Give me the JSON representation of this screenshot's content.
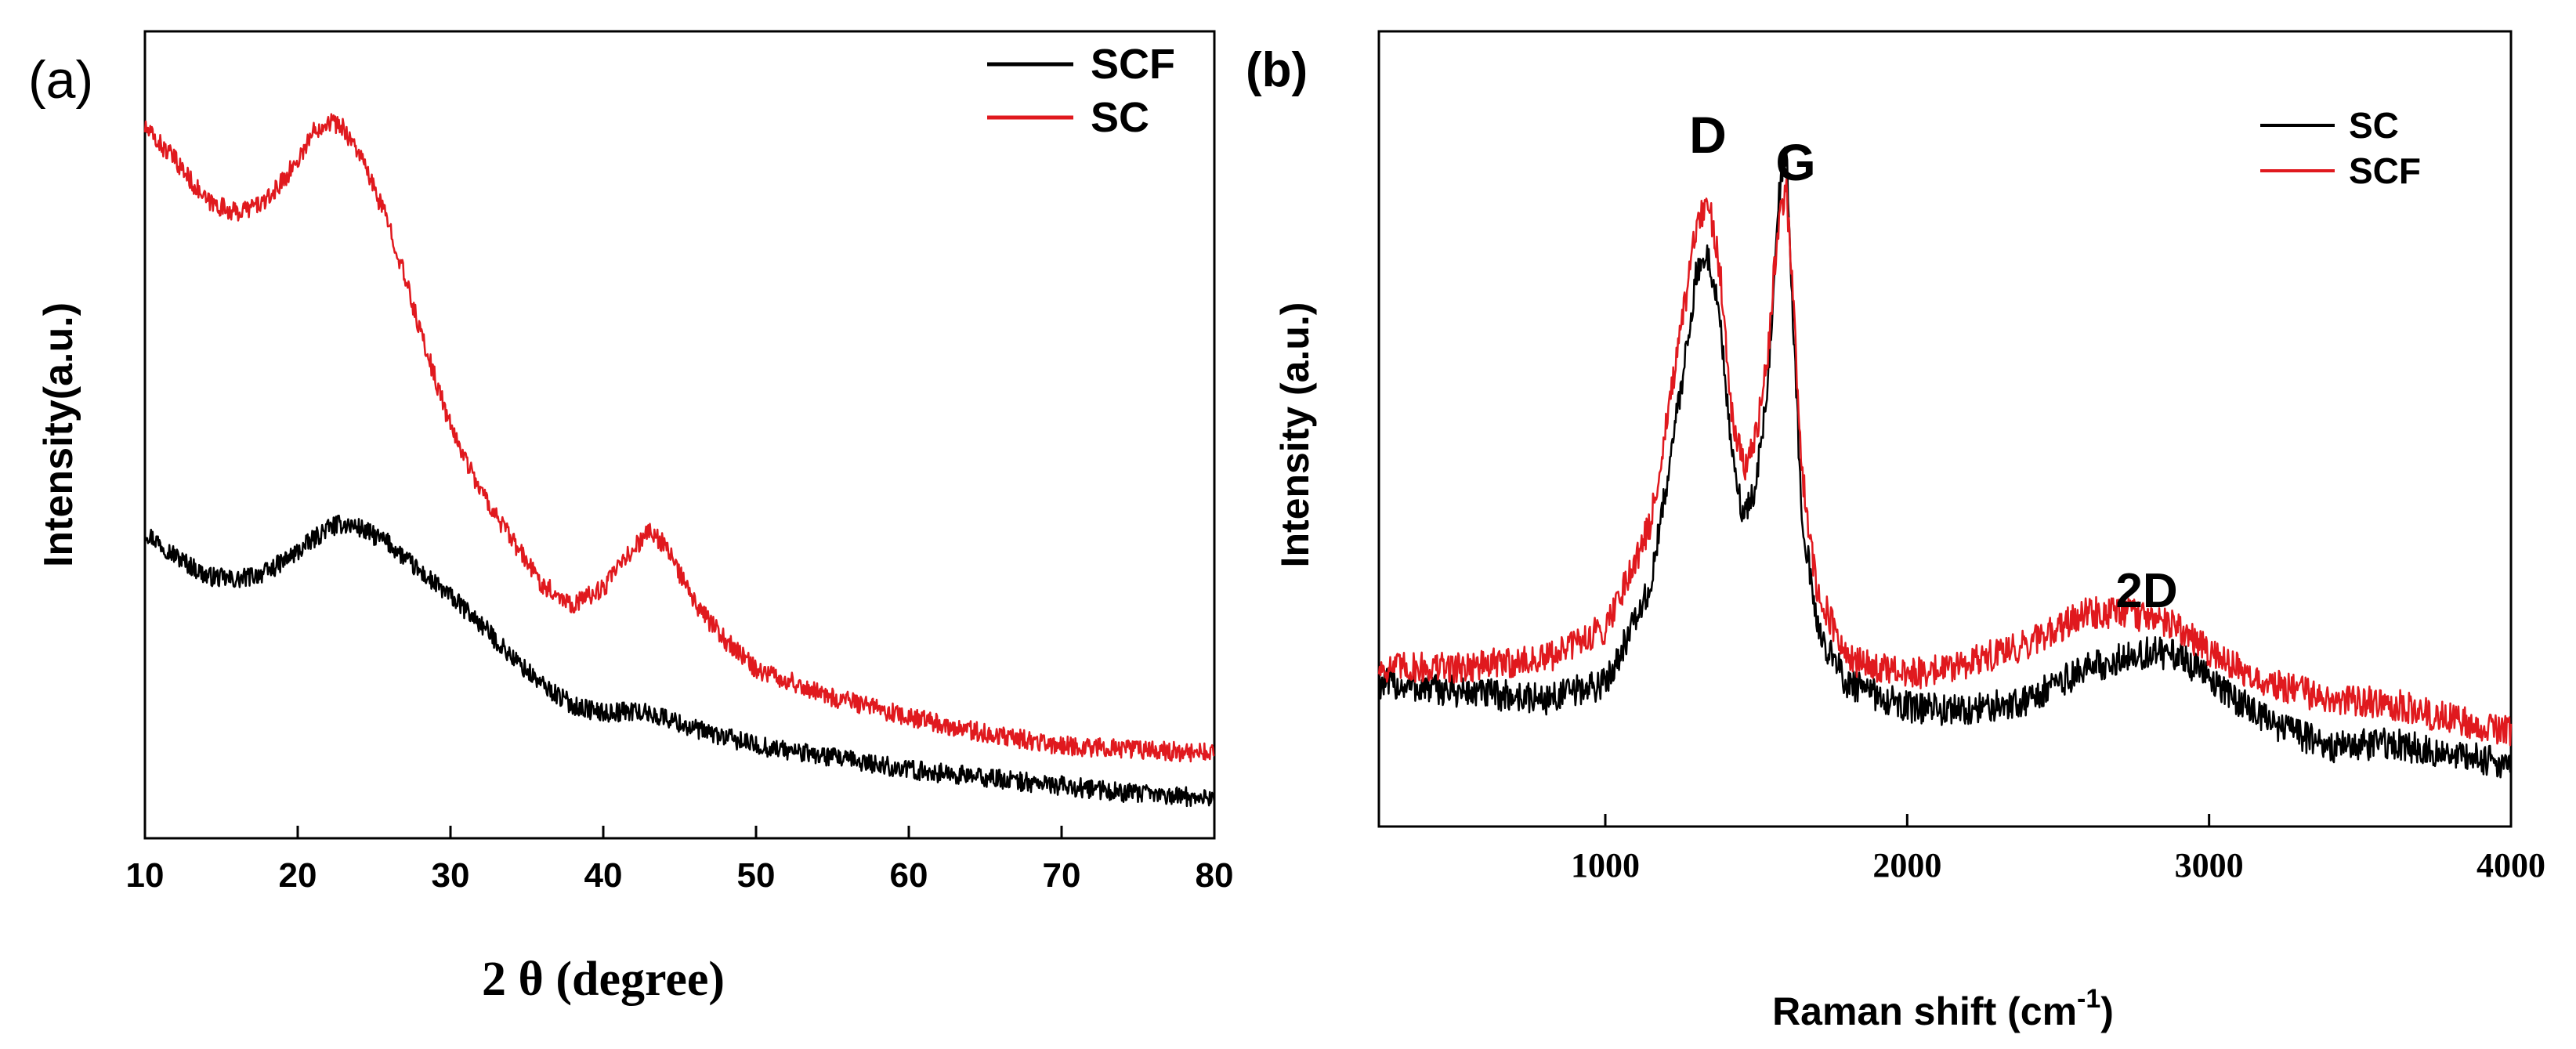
{
  "chart_data": [
    {
      "panel_label": "(a)",
      "type": "line",
      "xlabel": "2 θ (degree)",
      "ylabel": "Intensity(a.u.)",
      "xlim": [
        10,
        80
      ],
      "ylim": [
        0,
        100
      ],
      "xticks": [
        "10",
        "20",
        "30",
        "40",
        "50",
        "60",
        "70",
        "80"
      ],
      "legend": {
        "placement": "top-right",
        "entries": [
          "SCF",
          "SC"
        ]
      },
      "series": [
        {
          "name": "SCF",
          "color": "#000000",
          "x": [
            10,
            12,
            14,
            16,
            18,
            20,
            22,
            23,
            24,
            26,
            28,
            30,
            32,
            34,
            36,
            38,
            40,
            42,
            44,
            46,
            50,
            55,
            60,
            65,
            70,
            75,
            80
          ],
          "y": [
            38,
            35,
            32.5,
            32,
            33,
            35.5,
            38.5,
            39,
            38.5,
            36.5,
            33,
            30,
            26.5,
            22.5,
            19,
            16.5,
            15.5,
            15.8,
            15,
            13.5,
            11.5,
            10,
            8.5,
            7.5,
            6.5,
            5.5,
            5
          ]
        },
        {
          "name": "SC",
          "color": "#e0191e",
          "x": [
            10,
            12,
            14,
            16,
            18,
            20,
            21,
            22,
            23,
            24,
            26,
            28,
            30,
            32,
            34,
            36,
            38,
            40,
            42,
            43,
            44,
            46,
            48,
            50,
            55,
            60,
            65,
            70,
            75,
            80
          ],
          "y": [
            88,
            84,
            79,
            77.5,
            79,
            84,
            87.5,
            89,
            88,
            85,
            76,
            63,
            51,
            43,
            37,
            31.5,
            29,
            31,
            36,
            38,
            36.5,
            29,
            24.5,
            21,
            17.5,
            15,
            13,
            11.5,
            11,
            10.5
          ]
        }
      ]
    },
    {
      "panel_label": "(b)",
      "type": "line",
      "xlabel": "Raman shift (cm",
      "xlabel_superscript": "-1",
      "xlabel_suffix": ")",
      "ylabel": "Intensity (a.u.)",
      "xlim": [
        250,
        4000
      ],
      "ylim": [
        0,
        100
      ],
      "xticks": [
        "1000",
        "2000",
        "3000",
        "4000"
      ],
      "legend": {
        "placement": "top-right",
        "entries": [
          "SC",
          "SCF"
        ]
      },
      "annotations": [
        "D",
        "G",
        "2D"
      ],
      "series": [
        {
          "name": "SC",
          "color": "#000000",
          "x": [
            250,
            500,
            800,
            1000,
            1150,
            1250,
            1300,
            1340,
            1380,
            1420,
            1460,
            1500,
            1540,
            1570,
            1600,
            1620,
            1650,
            1700,
            1800,
            2000,
            2200,
            2400,
            2600,
            2800,
            2900,
            3000,
            3200,
            3400,
            3600,
            3800,
            4000
          ],
          "y": [
            18,
            17,
            16,
            18,
            30,
            55,
            69,
            72,
            64,
            46,
            39,
            43,
            56,
            78,
            85,
            65,
            40,
            25,
            18,
            15,
            14.5,
            16,
            20,
            22,
            21.5,
            18.5,
            13,
            10,
            10.5,
            9,
            8
          ]
        },
        {
          "name": "SCF",
          "color": "#e0191e",
          "x": [
            250,
            500,
            800,
            1000,
            1150,
            1250,
            1300,
            1340,
            1380,
            1420,
            1460,
            1500,
            1540,
            1570,
            1600,
            1620,
            1650,
            1700,
            1800,
            2000,
            2200,
            2400,
            2600,
            2800,
            2900,
            3000,
            3200,
            3400,
            3600,
            3800,
            4000
          ],
          "y": [
            20,
            20,
            21,
            25,
            38,
            62,
            75,
            79,
            70,
            52,
            45,
            49,
            60,
            75,
            80,
            68,
            45,
            30,
            21,
            19,
            20.5,
            23,
            27,
            26.5,
            25,
            22,
            18,
            16,
            15.5,
            13.5,
            12
          ]
        }
      ]
    }
  ]
}
